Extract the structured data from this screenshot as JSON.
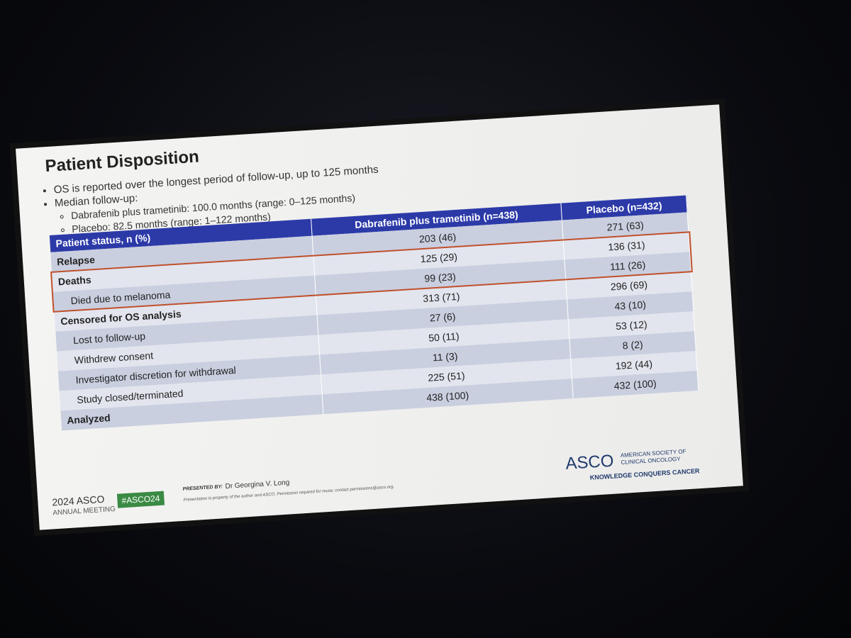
{
  "slide": {
    "title": "Patient Disposition",
    "bullets": [
      {
        "text": "OS is reported over the longest period of follow-up, up to 125 months",
        "sub": []
      },
      {
        "text": "Median follow-up:",
        "sub": [
          "Dabrafenib plus trametinib: 100.0 months (range: 0–125 months)",
          "Placebo: 82.5 months (range: 1–122 months)"
        ]
      }
    ],
    "table": {
      "header": [
        "Patient status, n (%)",
        "Dabrafenib plus trametinib (n=438)",
        "Placebo (n=432)"
      ],
      "rows": [
        [
          "Relapse",
          "203 (46)",
          "271 (63)"
        ],
        [
          "Deaths",
          "125 (29)",
          "136 (31)"
        ],
        [
          "Died due to melanoma",
          "99 (23)",
          "111 (26)"
        ],
        [
          "Censored for OS analysis",
          "313 (71)",
          "296 (69)"
        ],
        [
          "Lost to follow-up",
          "27 (6)",
          "43 (10)"
        ],
        [
          "Withdrew consent",
          "50 (11)",
          "53 (12)"
        ],
        [
          "Investigator discretion for withdrawal",
          "11 (3)",
          "8 (2)"
        ],
        [
          "Study closed/terminated",
          "225 (51)",
          "192 (44)"
        ],
        [
          "Analyzed",
          "438 (100)",
          "432 (100)"
        ]
      ]
    },
    "footer": {
      "meeting_year": "2024 ASCO",
      "meeting_name": "ANNUAL MEETING",
      "hashtag": "#ASCO24",
      "presented_by_label": "PRESENTED BY:",
      "presenter": "Dr Georgina V. Long",
      "notice": "Presentation is property of the author and ASCO. Permission required for reuse; contact permissions@asco.org.",
      "logo": "ASCO",
      "society": "AMERICAN SOCIETY OF CLINICAL ONCOLOGY",
      "tagline": "KNOWLEDGE CONQUERS CANCER"
    }
  }
}
